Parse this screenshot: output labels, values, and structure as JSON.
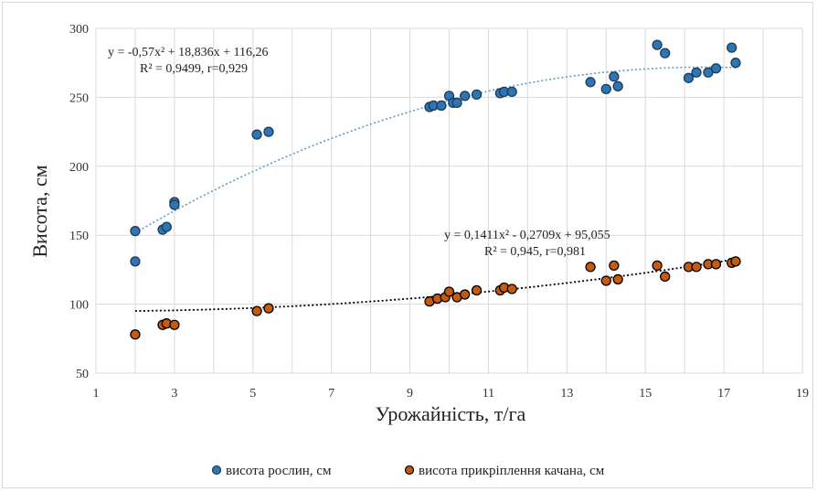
{
  "chart_data": {
    "type": "scatter",
    "xlabel": "Урожайність, т/га",
    "ylabel": "Висота, см",
    "xlim": [
      1,
      19
    ],
    "ylim": [
      50,
      300
    ],
    "x_ticks": [
      "1",
      "3",
      "5",
      "7",
      "9",
      "11",
      "13",
      "15",
      "17",
      "19"
    ],
    "y_ticks": [
      "50",
      "100",
      "150",
      "200",
      "250",
      "300"
    ],
    "grid": true,
    "legend_position": "bottom",
    "series": [
      {
        "name": "висота рослин, см",
        "color": "#2e75b6",
        "trend_color": "#5b9bd5",
        "trend_coeffs": [
          -0.57,
          18.836,
          116.26
        ],
        "equation": "y = -0,57x² + 18,836x + 116,26",
        "stats": "R² = 0,9499, r=0,929",
        "points": [
          [
            2.0,
            153
          ],
          [
            2.0,
            131
          ],
          [
            2.7,
            154
          ],
          [
            2.8,
            156
          ],
          [
            3.0,
            174
          ],
          [
            3.0,
            172
          ],
          [
            5.1,
            223
          ],
          [
            5.4,
            225
          ],
          [
            9.5,
            243
          ],
          [
            9.6,
            244
          ],
          [
            9.8,
            244
          ],
          [
            10.0,
            251
          ],
          [
            10.1,
            246
          ],
          [
            10.2,
            246
          ],
          [
            10.4,
            251
          ],
          [
            10.7,
            252
          ],
          [
            11.3,
            253
          ],
          [
            11.4,
            254
          ],
          [
            11.6,
            254
          ],
          [
            13.6,
            261
          ],
          [
            14.0,
            256
          ],
          [
            14.2,
            265
          ],
          [
            14.3,
            258
          ],
          [
            15.3,
            288
          ],
          [
            15.5,
            282
          ],
          [
            16.1,
            264
          ],
          [
            16.3,
            268
          ],
          [
            16.6,
            268
          ],
          [
            16.8,
            271
          ],
          [
            17.2,
            286
          ],
          [
            17.3,
            275
          ]
        ]
      },
      {
        "name": "висота прикріплення качана, см",
        "color": "#c55a11",
        "trend_color": "#000000",
        "trend_coeffs": [
          0.1411,
          -0.2709,
          95.055
        ],
        "equation": "y = 0,1411x² - 0,2709x + 95,055",
        "stats": "R² = 0,945, r=0,981",
        "points": [
          [
            2.0,
            78
          ],
          [
            2.7,
            85
          ],
          [
            2.8,
            86
          ],
          [
            3.0,
            85
          ],
          [
            5.1,
            95
          ],
          [
            5.4,
            97
          ],
          [
            9.5,
            102
          ],
          [
            9.7,
            104
          ],
          [
            9.9,
            105
          ],
          [
            10.0,
            109
          ],
          [
            10.2,
            105
          ],
          [
            10.4,
            107
          ],
          [
            10.7,
            110
          ],
          [
            11.3,
            110
          ],
          [
            11.4,
            112
          ],
          [
            11.6,
            111
          ],
          [
            13.6,
            127
          ],
          [
            14.0,
            117
          ],
          [
            14.2,
            128
          ],
          [
            14.3,
            118
          ],
          [
            15.3,
            128
          ],
          [
            15.5,
            120
          ],
          [
            16.1,
            127
          ],
          [
            16.3,
            127
          ],
          [
            16.6,
            129
          ],
          [
            16.8,
            129
          ],
          [
            17.2,
            130
          ],
          [
            17.3,
            131
          ]
        ]
      }
    ]
  }
}
